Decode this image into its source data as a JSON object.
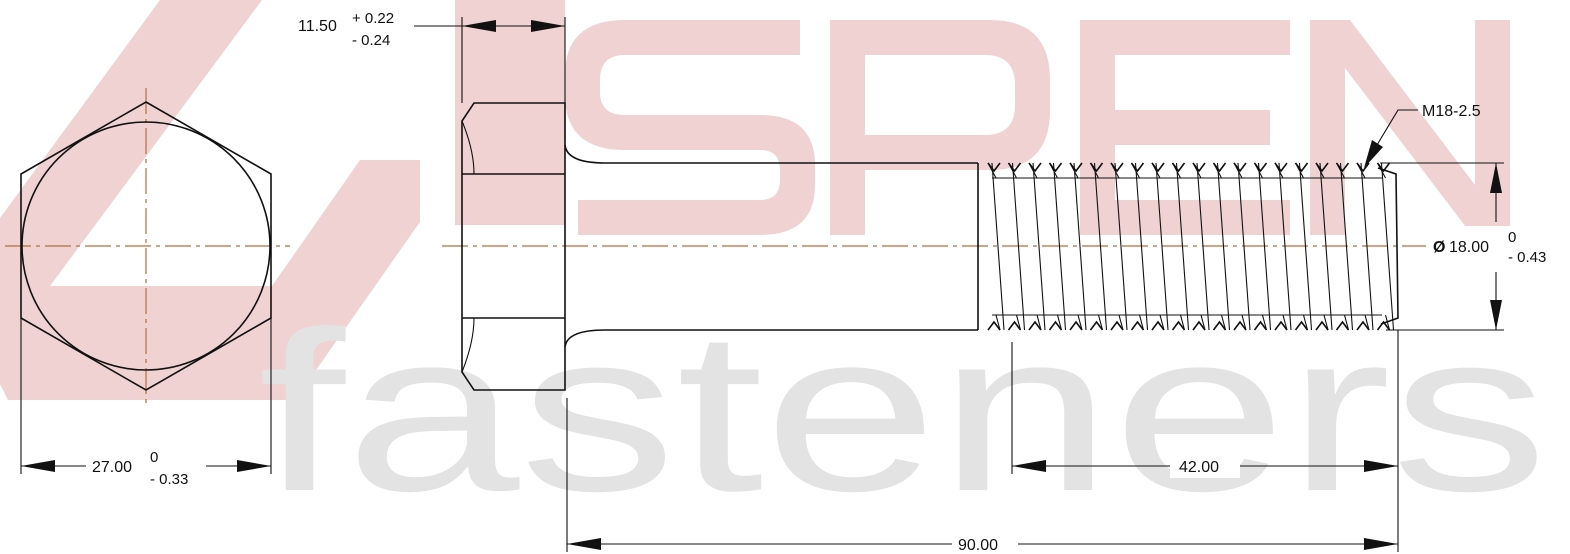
{
  "watermark": {
    "brand_letters": [
      "A",
      "S",
      "P",
      "E",
      "N"
    ],
    "sub_text": "fasteners",
    "colors": {
      "brand": "#f0d2d2",
      "sub": "#e3e3e3"
    }
  },
  "dimensions": {
    "head_height": {
      "value": "11.50",
      "plus": "+ 0.22",
      "minus": "- 0.24"
    },
    "across_flats": {
      "value": "27.00",
      "upper": "0",
      "lower": "- 0.33"
    },
    "thread_length": {
      "value": "42.00"
    },
    "bolt_length": {
      "value": "90.00"
    },
    "major_diameter": {
      "symbol": "Ø",
      "value": "18.00",
      "upper": "0",
      "lower": "- 0.43"
    },
    "thread_spec": {
      "value": "M18-2.5"
    }
  },
  "colors": {
    "line": "#111111",
    "centerline": "#b0703c"
  }
}
